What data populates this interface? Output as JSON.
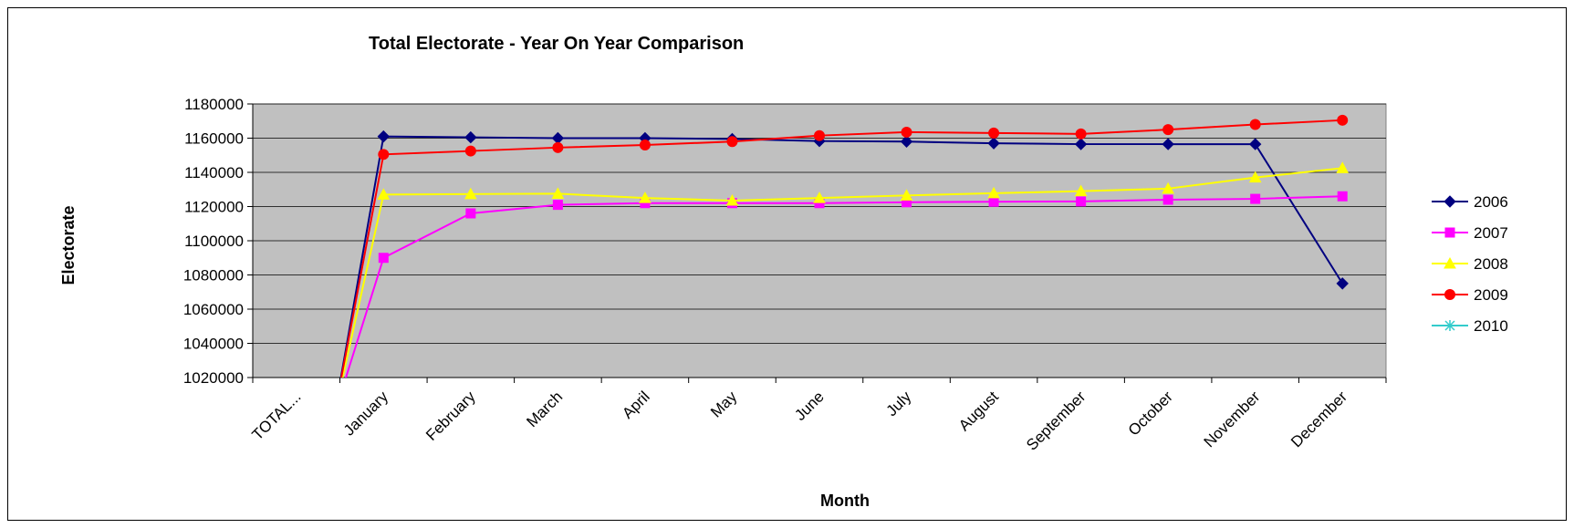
{
  "chart_data": {
    "type": "line",
    "title": "Total Electorate - Year On Year Comparison",
    "xlabel": "Month",
    "ylabel": "Electorate",
    "categories": [
      "TOTAL...",
      "January",
      "February",
      "March",
      "April",
      "May",
      "June",
      "July",
      "August",
      "September",
      "October",
      "November",
      "December"
    ],
    "ylim": [
      1020000,
      1180000
    ],
    "yticks": [
      1020000,
      1040000,
      1060000,
      1080000,
      1100000,
      1120000,
      1140000,
      1160000,
      1180000
    ],
    "grid": true,
    "legend_position": "right",
    "plot_background": "#c0c0c0",
    "series": [
      {
        "name": "2006",
        "color": "#000080",
        "marker": "diamond",
        "values": [
          null,
          1161000,
          1160500,
          1160000,
          1160000,
          1159500,
          1158300,
          1158000,
          1157000,
          1156500,
          1156500,
          1156500,
          1075000
        ]
      },
      {
        "name": "2007",
        "color": "#ff00ff",
        "marker": "square",
        "values": [
          null,
          1090000,
          1116000,
          1121000,
          1122000,
          1122000,
          1122000,
          1122500,
          1122800,
          1123000,
          1124000,
          1124500,
          1126000
        ]
      },
      {
        "name": "2008",
        "color": "#ffff00",
        "marker": "triangle",
        "values": [
          null,
          1127000,
          1127300,
          1127500,
          1125000,
          1123500,
          1125000,
          1126500,
          1127800,
          1129000,
          1130500,
          1137000,
          1142500
        ]
      },
      {
        "name": "2009",
        "color": "#ff0000",
        "marker": "circle",
        "values": [
          null,
          1150500,
          1152500,
          1154500,
          1156000,
          1158000,
          1161500,
          1163500,
          1163000,
          1162500,
          1165000,
          1168000,
          1170500
        ]
      },
      {
        "name": "2010",
        "color": "#33cccc",
        "marker": "star",
        "values": [
          null,
          null,
          null,
          null,
          null,
          null,
          null,
          null,
          null,
          null,
          null,
          null,
          null
        ]
      }
    ]
  }
}
